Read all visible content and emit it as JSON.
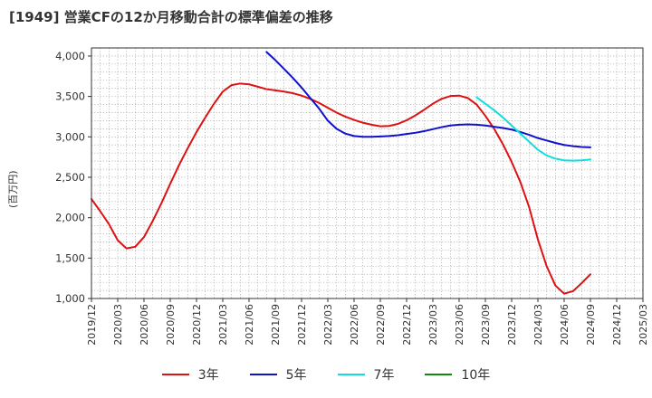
{
  "chart_data": {
    "type": "line",
    "title": "[1949]  営業CFの12か月移動合計の標準偏差の推移",
    "ylabel": "(百万円)",
    "xlabel": "",
    "ylim": [
      1000,
      4100
    ],
    "y_ticks": [
      1000,
      1500,
      2000,
      2500,
      3000,
      3500,
      4000
    ],
    "y_tick_labels": [
      "1,000",
      "1,500",
      "2,000",
      "2,500",
      "3,000",
      "3,500",
      "4,000"
    ],
    "x_tick_labels": [
      "2019/12",
      "2020/03",
      "2020/06",
      "2020/09",
      "2020/12",
      "2021/03",
      "2021/06",
      "2021/09",
      "2021/12",
      "2022/03",
      "2022/06",
      "2022/09",
      "2022/12",
      "2023/03",
      "2023/06",
      "2023/09",
      "2023/12",
      "2024/03",
      "2024/06",
      "2024/09",
      "2024/12",
      "2025/03"
    ],
    "grid": true,
    "legend_position": "bottom",
    "series": [
      {
        "name": "3年",
        "color": "#dd1111",
        "values": [
          [
            "2019/12",
            2230
          ],
          [
            "2020/01",
            2080
          ],
          [
            "2020/02",
            1920
          ],
          [
            "2020/03",
            1720
          ],
          [
            "2020/04",
            1620
          ],
          [
            "2020/05",
            1640
          ],
          [
            "2020/06",
            1760
          ],
          [
            "2020/07",
            1960
          ],
          [
            "2020/08",
            2180
          ],
          [
            "2020/09",
            2420
          ],
          [
            "2020/10",
            2650
          ],
          [
            "2020/11",
            2860
          ],
          [
            "2020/12",
            3060
          ],
          [
            "2021/01",
            3240
          ],
          [
            "2021/02",
            3410
          ],
          [
            "2021/03",
            3560
          ],
          [
            "2021/04",
            3640
          ],
          [
            "2021/05",
            3660
          ],
          [
            "2021/06",
            3650
          ],
          [
            "2021/07",
            3620
          ],
          [
            "2021/08",
            3590
          ],
          [
            "2021/09",
            3575
          ],
          [
            "2021/10",
            3560
          ],
          [
            "2021/11",
            3540
          ],
          [
            "2021/12",
            3510
          ],
          [
            "2022/01",
            3470
          ],
          [
            "2022/02",
            3420
          ],
          [
            "2022/03",
            3360
          ],
          [
            "2022/04",
            3300
          ],
          [
            "2022/05",
            3250
          ],
          [
            "2022/06",
            3210
          ],
          [
            "2022/07",
            3175
          ],
          [
            "2022/08",
            3150
          ],
          [
            "2022/09",
            3130
          ],
          [
            "2022/10",
            3135
          ],
          [
            "2022/11",
            3160
          ],
          [
            "2022/12",
            3205
          ],
          [
            "2023/01",
            3265
          ],
          [
            "2023/02",
            3335
          ],
          [
            "2023/03",
            3410
          ],
          [
            "2023/04",
            3470
          ],
          [
            "2023/05",
            3505
          ],
          [
            "2023/06",
            3510
          ],
          [
            "2023/07",
            3480
          ],
          [
            "2023/08",
            3400
          ],
          [
            "2023/09",
            3260
          ],
          [
            "2023/10",
            3100
          ],
          [
            "2023/11",
            2910
          ],
          [
            "2023/12",
            2690
          ],
          [
            "2024/01",
            2440
          ],
          [
            "2024/02",
            2130
          ],
          [
            "2024/03",
            1730
          ],
          [
            "2024/04",
            1400
          ],
          [
            "2024/05",
            1160
          ],
          [
            "2024/06",
            1060
          ],
          [
            "2024/07",
            1090
          ],
          [
            "2024/08",
            1190
          ],
          [
            "2024/09",
            1300
          ]
        ]
      },
      {
        "name": "5年",
        "color": "#1111cc",
        "values": [
          [
            "2021/08",
            4050
          ],
          [
            "2021/09",
            3950
          ],
          [
            "2021/10",
            3840
          ],
          [
            "2021/11",
            3730
          ],
          [
            "2021/12",
            3610
          ],
          [
            "2022/01",
            3480
          ],
          [
            "2022/02",
            3350
          ],
          [
            "2022/03",
            3200
          ],
          [
            "2022/04",
            3100
          ],
          [
            "2022/05",
            3040
          ],
          [
            "2022/06",
            3010
          ],
          [
            "2022/07",
            3000
          ],
          [
            "2022/08",
            3000
          ],
          [
            "2022/09",
            3005
          ],
          [
            "2022/10",
            3010
          ],
          [
            "2022/11",
            3020
          ],
          [
            "2022/12",
            3035
          ],
          [
            "2023/01",
            3050
          ],
          [
            "2023/02",
            3070
          ],
          [
            "2023/03",
            3095
          ],
          [
            "2023/04",
            3120
          ],
          [
            "2023/05",
            3140
          ],
          [
            "2023/06",
            3150
          ],
          [
            "2023/07",
            3155
          ],
          [
            "2023/08",
            3150
          ],
          [
            "2023/09",
            3140
          ],
          [
            "2023/10",
            3125
          ],
          [
            "2023/11",
            3110
          ],
          [
            "2023/12",
            3090
          ],
          [
            "2024/01",
            3060
          ],
          [
            "2024/02",
            3025
          ],
          [
            "2024/03",
            2985
          ],
          [
            "2024/04",
            2955
          ],
          [
            "2024/05",
            2925
          ],
          [
            "2024/06",
            2900
          ],
          [
            "2024/07",
            2885
          ],
          [
            "2024/08",
            2875
          ],
          [
            "2024/09",
            2870
          ]
        ]
      },
      {
        "name": "7年",
        "color": "#11dddd",
        "values": [
          [
            "2023/08",
            3490
          ],
          [
            "2023/09",
            3410
          ],
          [
            "2023/10",
            3330
          ],
          [
            "2023/11",
            3240
          ],
          [
            "2023/12",
            3140
          ],
          [
            "2024/01",
            3040
          ],
          [
            "2024/02",
            2940
          ],
          [
            "2024/03",
            2840
          ],
          [
            "2024/04",
            2770
          ],
          [
            "2024/05",
            2730
          ],
          [
            "2024/06",
            2710
          ],
          [
            "2024/07",
            2705
          ],
          [
            "2024/08",
            2710
          ],
          [
            "2024/09",
            2720
          ]
        ]
      },
      {
        "name": "10年",
        "color": "#118811",
        "values": []
      }
    ]
  }
}
